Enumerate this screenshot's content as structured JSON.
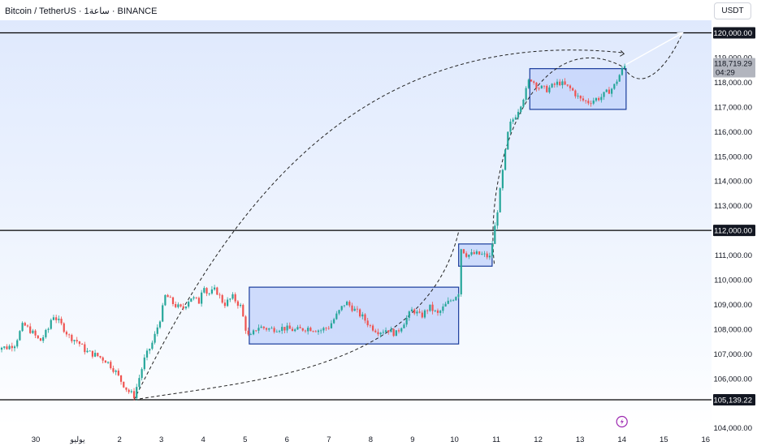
{
  "header": {
    "title": "Bitcoin / TetherUS · 1ساعة · BINANCE",
    "currency": "USDT"
  },
  "colors": {
    "candle_up": "#26a69a",
    "candle_down": "#ef5350",
    "zone_fill": "#c7d6fb",
    "zone_border": "#1a3c9c",
    "level_line": "#000000",
    "last_price_bg": "#b2b5be",
    "level_label_bg": "#131722",
    "bg_top": "#eaf1fe",
    "bg_bottom": "#ffffff"
  },
  "chart_data": {
    "type": "candlestick",
    "title": "Bitcoin / TetherUS · 1ساعة · BINANCE",
    "ylim": [
      103700,
      121300
    ],
    "xlim": [
      29.1,
      16.1
    ],
    "x_axis_labels": [
      {
        "day": 30,
        "label": "30"
      },
      {
        "day": 1,
        "label": "يوليو"
      },
      {
        "day": 2,
        "label": "2"
      },
      {
        "day": 3,
        "label": "3"
      },
      {
        "day": 4,
        "label": "4"
      },
      {
        "day": 5,
        "label": "5"
      },
      {
        "day": 6,
        "label": "6"
      },
      {
        "day": 7,
        "label": "7"
      },
      {
        "day": 8,
        "label": "8"
      },
      {
        "day": 9,
        "label": "9"
      },
      {
        "day": 10,
        "label": "10"
      },
      {
        "day": 11,
        "label": "11"
      },
      {
        "day": 12,
        "label": "12"
      },
      {
        "day": 13,
        "label": "13"
      },
      {
        "day": 14,
        "label": "14"
      },
      {
        "day": 15,
        "label": "15"
      },
      {
        "day": 16,
        "label": "16"
      }
    ],
    "y_ticks": [
      104000,
      106000,
      107000,
      108000,
      109000,
      110000,
      111000,
      113000,
      114000,
      115000,
      116000,
      117000,
      118000,
      119000
    ],
    "y_tick_labels": [
      "104,000.00",
      "106,000.00",
      "107,000.00",
      "108,000.00",
      "109,000.00",
      "110,000.00",
      "111,000.00",
      "113,000.00",
      "114,000.00",
      "115,000.00",
      "116,000.00",
      "117,000.00",
      "118,000.00",
      "119,000.00"
    ],
    "levels": [
      {
        "value": 120000,
        "label": "120,000.00"
      },
      {
        "value": 112000,
        "label": "112,000.00"
      },
      {
        "value": 105139.22,
        "label": "105,139.22"
      }
    ],
    "last_price": {
      "value": 118719.29,
      "label": "118,719.29",
      "countdown": "04:29"
    },
    "zones": [
      {
        "x0": 5.1,
        "x1": 10.1,
        "y0": 107400,
        "y1": 109700
      },
      {
        "x0": 10.1,
        "x1": 10.9,
        "y0": 110550,
        "y1": 111450
      },
      {
        "x0": 11.8,
        "x1": 14.1,
        "y0": 116900,
        "y1": 118550
      }
    ],
    "price_path": [
      [
        29.0,
        107300
      ],
      [
        29.3,
        107250
      ],
      [
        29.5,
        107400
      ],
      [
        29.7,
        108200
      ],
      [
        29.9,
        107900
      ],
      [
        30.1,
        107500
      ],
      [
        30.3,
        108000
      ],
      [
        30.4,
        108600
      ],
      [
        30.6,
        108200
      ],
      [
        30.8,
        107700
      ],
      [
        31.0,
        107500
      ],
      [
        31.2,
        107100
      ],
      [
        31.5,
        106900
      ],
      [
        31.7,
        106700
      ],
      [
        31.9,
        106300
      ],
      [
        32.0,
        106000
      ],
      [
        32.2,
        105500
      ],
      [
        32.35,
        105300
      ],
      [
        32.5,
        106200
      ],
      [
        32.6,
        106800
      ],
      [
        32.8,
        107500
      ],
      [
        33.0,
        108600
      ],
      [
        33.1,
        109400
      ],
      [
        33.3,
        109000
      ],
      [
        33.5,
        108800
      ],
      [
        33.7,
        109300
      ],
      [
        33.9,
        109100
      ],
      [
        34.0,
        109900
      ],
      [
        34.1,
        109400
      ],
      [
        34.3,
        109600
      ],
      [
        34.5,
        109000
      ],
      [
        34.7,
        109300
      ],
      [
        34.9,
        108900
      ],
      [
        35.0,
        108100
      ],
      [
        35.1,
        107600
      ],
      [
        35.3,
        108100
      ],
      [
        35.6,
        108000
      ],
      [
        35.9,
        108050
      ],
      [
        36.2,
        107950
      ],
      [
        36.5,
        108050
      ],
      [
        36.8,
        107950
      ],
      [
        37.0,
        108100
      ],
      [
        37.2,
        108600
      ],
      [
        37.4,
        109100
      ],
      [
        37.6,
        108800
      ],
      [
        37.8,
        108500
      ],
      [
        38.0,
        108100
      ],
      [
        38.2,
        107900
      ],
      [
        38.4,
        108000
      ],
      [
        38.6,
        107800
      ],
      [
        38.8,
        108300
      ],
      [
        39.0,
        108800
      ],
      [
        39.2,
        108500
      ],
      [
        39.4,
        108900
      ],
      [
        39.6,
        108600
      ],
      [
        39.8,
        109000
      ],
      [
        40.0,
        109300
      ],
      [
        40.1,
        109500
      ],
      [
        40.15,
        111300
      ],
      [
        40.3,
        111000
      ],
      [
        40.5,
        111050
      ],
      [
        40.7,
        111000
      ],
      [
        40.85,
        110900
      ],
      [
        41.0,
        112500
      ],
      [
        41.1,
        113700
      ],
      [
        41.2,
        115000
      ],
      [
        41.3,
        116200
      ],
      [
        41.5,
        116800
      ],
      [
        41.7,
        117600
      ],
      [
        41.8,
        118200
      ],
      [
        42.0,
        117800
      ],
      [
        42.2,
        117700
      ],
      [
        42.5,
        118000
      ],
      [
        42.8,
        117700
      ],
      [
        43.0,
        117300
      ],
      [
        43.2,
        117200
      ],
      [
        43.5,
        117400
      ],
      [
        43.8,
        117800
      ],
      [
        44.0,
        118500
      ],
      [
        44.1,
        118719
      ]
    ],
    "projection": [
      [
        14.1,
        118719
      ],
      [
        15.45,
        120000
      ]
    ]
  },
  "axis_badge": {
    "icon": "lightning-icon",
    "day": 14
  }
}
